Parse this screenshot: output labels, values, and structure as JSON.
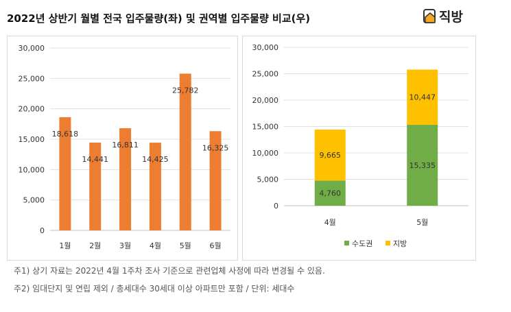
{
  "title": "2022년 상반기 월별 전국 입주물량(좌) 및 권역별 입주물량 비교(우)",
  "logo": "직방",
  "notes": [
    "주1) 상기 자료는 2022년 4월 1주차 조사 기준으로 관련업체 사정에 따라 변경될 수 있음.",
    "주2) 임대단지 및 연립 제외 / 총세대수 30세대 이상 아파트만 포함 / 단위: 세대수"
  ],
  "chart_data": [
    {
      "type": "bar",
      "categories": [
        "1월",
        "2월",
        "3월",
        "4월",
        "5월",
        "6월"
      ],
      "values": [
        18618,
        14441,
        16811,
        14425,
        25782,
        16325
      ],
      "labels": [
        "18,618",
        "14,441",
        "16,811",
        "14,425",
        "25,782",
        "16,325"
      ],
      "ylim": [
        0,
        30000
      ],
      "yticks": [
        "0",
        "5,000",
        "10,000",
        "15,000",
        "20,000",
        "25,000",
        "30,000"
      ],
      "color": "#ED7D31",
      "grid": true
    },
    {
      "type": "bar",
      "stacked": true,
      "categories": [
        "4월",
        "5월"
      ],
      "series": [
        {
          "name": "수도권",
          "values": [
            4760,
            15335
          ],
          "labels": [
            "4,760",
            "15,335"
          ],
          "color": "#70AD47"
        },
        {
          "name": "지방",
          "values": [
            9665,
            10447
          ],
          "labels": [
            "9,665",
            "10,447"
          ],
          "color": "#FFC000"
        }
      ],
      "ylim": [
        0,
        30000
      ],
      "yticks": [
        "0",
        "5,000",
        "10,000",
        "15,000",
        "20,000",
        "25,000",
        "30,000"
      ],
      "legend": "bottom",
      "grid": true
    }
  ]
}
